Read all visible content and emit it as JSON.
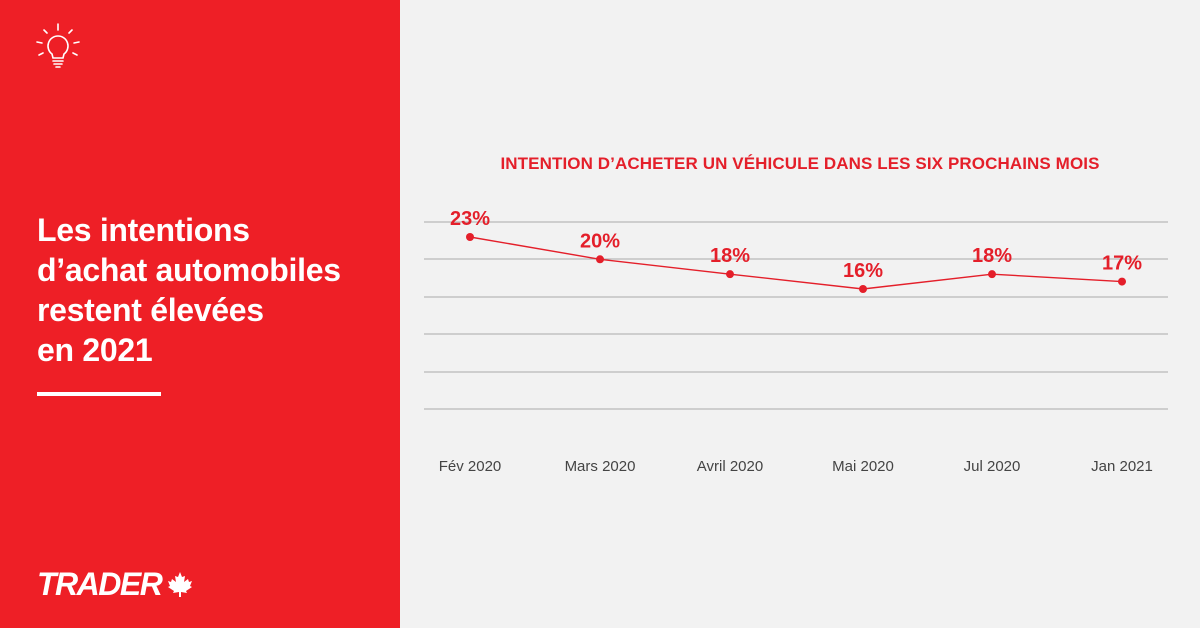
{
  "headline": {
    "lines": [
      "Les intentions",
      "d’achat automobiles",
      "restent élevées",
      "en 2021"
    ]
  },
  "brand": {
    "logo_text": "TRADER",
    "icons": [
      "lightbulb-icon",
      "maple-leaf-icon"
    ]
  },
  "colors": {
    "accent": "#ee1f26",
    "background": "#f2f2f2",
    "line": "#e41f2a",
    "grid": "#aaaaaa"
  },
  "chart_data": {
    "type": "line",
    "title": "INTENTION D’ACHETER UN VÉHICULE DANS LES SIX PROCHAINS MOIS",
    "categories": [
      "Fév 2020",
      "Mars 2020",
      "Avril 2020",
      "Mai 2020",
      "Jul 2020",
      "Jan 2021"
    ],
    "values": [
      23,
      20,
      18,
      16,
      18,
      17
    ],
    "data_labels": [
      "23%",
      "20%",
      "18%",
      "16%",
      "18%",
      "17%"
    ],
    "ylim": [
      0,
      25
    ],
    "grid": true,
    "legend": "none"
  }
}
